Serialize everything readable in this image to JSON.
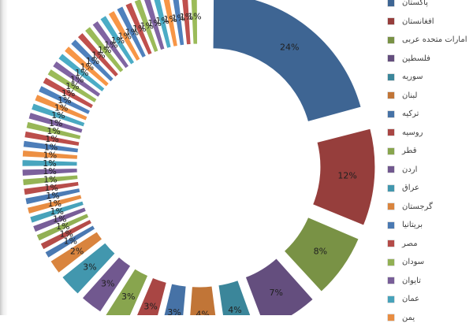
{
  "chart_data": {
    "type": "pie",
    "style": "exploded-doughnut",
    "legend_position": "right",
    "legend": [
      "پاکستان",
      "افغانستان",
      "امارات متحده عربی",
      "فلسطین",
      "سوریه",
      "لبنان",
      "ترکیه",
      "روسیه",
      "قطر",
      "اردن",
      "عراق",
      "گرجستان",
      "بریتانیا",
      "مصر",
      "سودان",
      "تایوان",
      "عمان",
      "یمن"
    ],
    "values": [
      24,
      12,
      8,
      7,
      4,
      4,
      3,
      3,
      3,
      3,
      3,
      2,
      1,
      1,
      1,
      1,
      1,
      1,
      1,
      1,
      1,
      1,
      1,
      1,
      1,
      1,
      1,
      1,
      1,
      1,
      1,
      1,
      1,
      1,
      1,
      1,
      1,
      1,
      1,
      1,
      1,
      1,
      1,
      1,
      1,
      1,
      1,
      1,
      1,
      1,
      1
    ],
    "data_labels": [
      "24%",
      "12%",
      "8%",
      "7%",
      "4%",
      "4%",
      "3%",
      "3%",
      "3%",
      "3%",
      "3%",
      "2%",
      "1%",
      "1%",
      "1%",
      "1%",
      "1%",
      "1%",
      "1%",
      "1%",
      "1%",
      "1%",
      "1%",
      "1%",
      "1%",
      "1%",
      "1%",
      "1%",
      "1%",
      "1%",
      "1%",
      "1%",
      "1%",
      "1%",
      "1%",
      "1%",
      "1%",
      "1%",
      "1%",
      "1%",
      "1%",
      "1%",
      "1%",
      "1%",
      "1%",
      "1%",
      "1%",
      "1%",
      "1%",
      "1%",
      "1%"
    ],
    "colors": [
      "#4f81bd",
      "#c0504d",
      "#9bbb59",
      "#8064a2",
      "#4bacc6",
      "#f79646"
    ]
  }
}
